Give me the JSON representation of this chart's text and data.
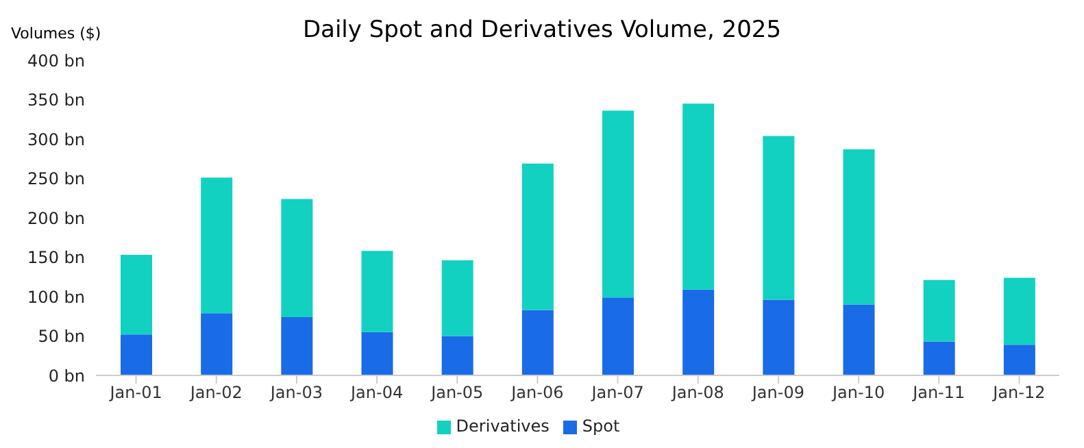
{
  "chart_data": {
    "type": "bar",
    "title": "Daily Spot and Derivatives Volume, 2025",
    "ylabel": "Volumes ($)",
    "categories": [
      "Jan-01",
      "Jan-02",
      "Jan-03",
      "Jan-04",
      "Jan-05",
      "Jan-06",
      "Jan-07",
      "Jan-08",
      "Jan-09",
      "Jan-10",
      "Jan-11",
      "Jan-12"
    ],
    "stacked": true,
    "series": [
      {
        "name": "Spot",
        "color": "#1a6be8",
        "values": [
          52,
          79,
          74,
          55,
          50,
          83,
          99,
          109,
          96,
          90,
          43,
          39
        ]
      },
      {
        "name": "Derivatives",
        "color": "#12d1c1",
        "values": [
          101,
          172,
          150,
          103,
          96,
          186,
          237,
          236,
          208,
          197,
          78,
          85
        ]
      }
    ],
    "ylim": [
      0,
      400
    ],
    "yticks": [
      {
        "value": 0,
        "label": "0 bn"
      },
      {
        "value": 50,
        "label": "50 bn"
      },
      {
        "value": 100,
        "label": "100 bn"
      },
      {
        "value": 150,
        "label": "150 bn"
      },
      {
        "value": 200,
        "label": "200 bn"
      },
      {
        "value": 250,
        "label": "250 bn"
      },
      {
        "value": 300,
        "label": "300 bn"
      },
      {
        "value": 350,
        "label": "350 bn"
      },
      {
        "value": 400,
        "label": "400 bn"
      }
    ],
    "grid": false,
    "legend": "bottom"
  }
}
